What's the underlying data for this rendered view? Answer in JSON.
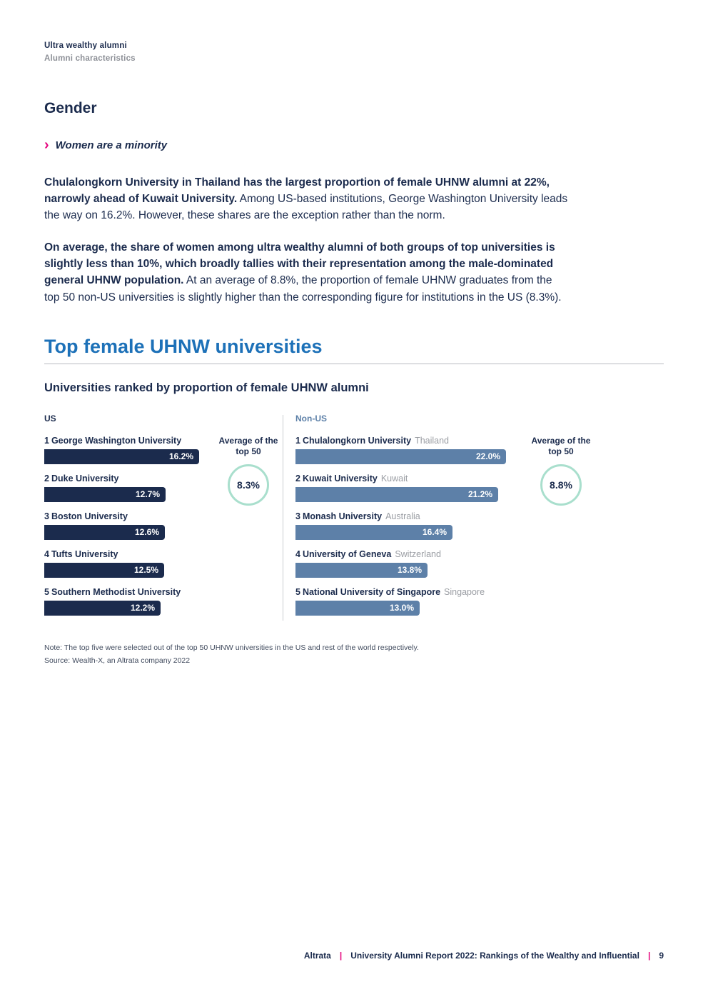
{
  "header": {
    "eyebrow": "Ultra wealthy alumni",
    "subtitle": "Alumni characteristics"
  },
  "gender_section": {
    "title": "Gender",
    "callout_marker": "›",
    "callout": "Women are a minority",
    "para1": {
      "bold": "Chulalongkorn University in Thailand has the largest proportion of female UHNW alumni at 22%, narrowly ahead of Kuwait University.",
      "rest": " Among US-based institutions, George Washington University leads the way on 16.2%. However, these shares are the exception rather than the norm."
    },
    "para2": {
      "bold": "On average, the share of women among ultra wealthy alumni of both groups of top universities is slightly less than 10%, which broadly tallies with their representation among the male-dominated general UHNW population.",
      "rest": " At an average of 8.8%, the proportion of female UHNW graduates from the top 50 non-US universities is slightly higher than the corresponding figure for institutions in the US (8.3%)."
    }
  },
  "chart_section": {
    "title": "Top female UHNW universities",
    "subtitle": "Universities ranked by proportion of female UHNW alumni",
    "note": "Note: The top five were selected out of the top 50 UHNW universities in the US and rest of the world respectively.",
    "source": "Source: Wealth-X, an Altrata company 2022"
  },
  "chart_data": {
    "type": "bar",
    "title": "Universities ranked by proportion of female UHNW alumni",
    "unit": "%",
    "xlim": [
      0,
      22
    ],
    "groups": [
      {
        "label": "US",
        "average_label": "Average of the top 50",
        "average_value": "8.3%",
        "items": [
          {
            "rank": "1",
            "name": "George Washington University",
            "country": "",
            "value": 16.2,
            "value_label": "16.2%"
          },
          {
            "rank": "2",
            "name": "Duke University",
            "country": "",
            "value": 12.7,
            "value_label": "12.7%"
          },
          {
            "rank": "3",
            "name": "Boston University",
            "country": "",
            "value": 12.6,
            "value_label": "12.6%"
          },
          {
            "rank": "4",
            "name": "Tufts University",
            "country": "",
            "value": 12.5,
            "value_label": "12.5%"
          },
          {
            "rank": "5",
            "name": "Southern Methodist University",
            "country": "",
            "value": 12.2,
            "value_label": "12.2%"
          }
        ]
      },
      {
        "label": "Non-US",
        "average_label": "Average of the top 50",
        "average_value": "8.8%",
        "items": [
          {
            "rank": "1",
            "name": "Chulalongkorn University",
            "country": "Thailand",
            "value": 22.0,
            "value_label": "22.0%"
          },
          {
            "rank": "2",
            "name": "Kuwait University",
            "country": "Kuwait",
            "value": 21.2,
            "value_label": "21.2%"
          },
          {
            "rank": "3",
            "name": "Monash University",
            "country": "Australia",
            "value": 16.4,
            "value_label": "16.4%"
          },
          {
            "rank": "4",
            "name": "University of Geneva",
            "country": "Switzerland",
            "value": 13.8,
            "value_label": "13.8%"
          },
          {
            "rank": "5",
            "name": "National University of Singapore",
            "country": "Singapore",
            "value": 13.0,
            "value_label": "13.0%"
          }
        ]
      }
    ]
  },
  "footer": {
    "brand": "Altrata",
    "separator": "|",
    "title": "University Alumni Report 2022: Rankings of the Wealthy and Influential",
    "page_number": "9"
  },
  "colors": {
    "navy": "#1b2b4d",
    "heading_blue": "#1d71b8",
    "accent_pink": "#e5067e",
    "us_bar": "#1b2b4d",
    "nonus_bar": "#5d80a8",
    "avg_circle_ring": "#a9dfcd",
    "muted_gray": "#8d9097"
  }
}
